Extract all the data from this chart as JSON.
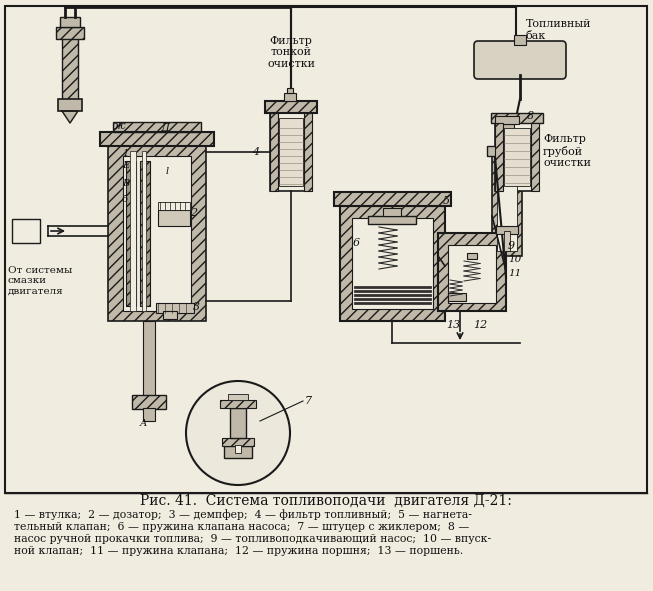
{
  "title": "Рис. 41.  Система топливоподачи  двигателя Д-21:",
  "caption_lines": [
    "1 — втулка;  2 — дозатор;  3 — демпфер;  4 — фильтр топливный;  5 — нагнета-",
    "тельный клапан;  6 — пружина клапана насоса;  7 — штуцер с жиклером;  8 —",
    "насос ручной прокачки топлива;  9 — топливоподкачивающий насос;  10 — впуск-",
    "ной клапан;  11 — пружина клапана;  12 — пружина поршня;  13 — поршень."
  ],
  "bg_color": "#f0ece0",
  "line_color": "#1a1a1a",
  "hatch_fill": "#c0b8a8",
  "text_color": "#111111",
  "title_fontsize": 10,
  "caption_fontsize": 7.8,
  "label_fontsize": 8
}
